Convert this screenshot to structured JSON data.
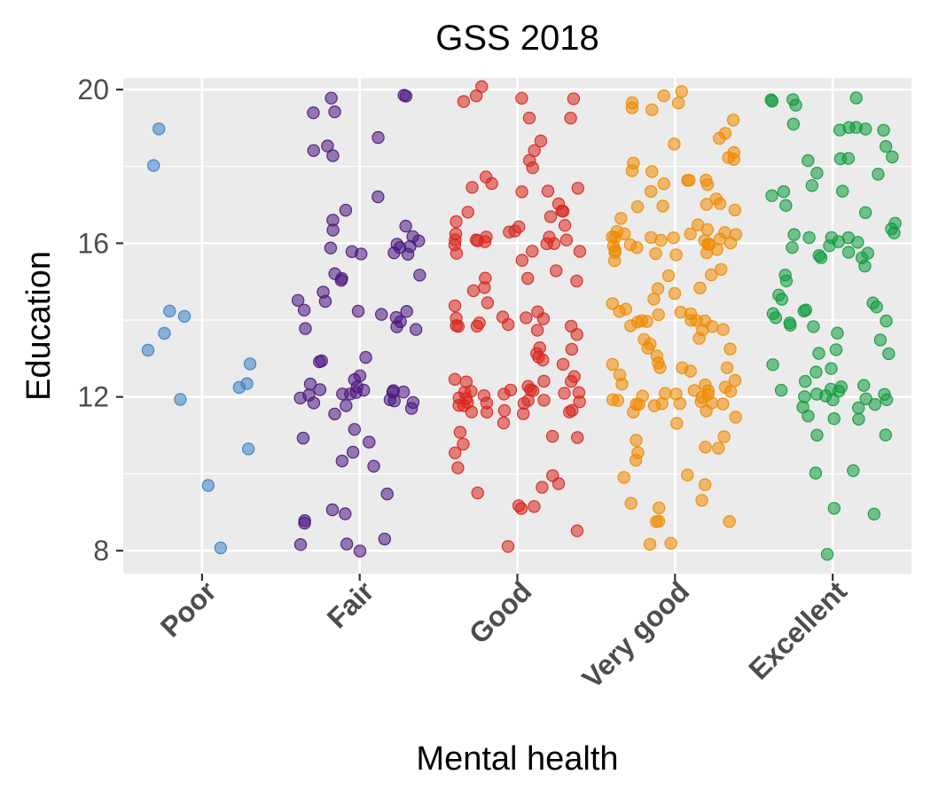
{
  "chart_data": {
    "type": "scatter",
    "title": "GSS 2018",
    "xlabel": "Mental health",
    "ylabel": "Education",
    "categories": [
      "Poor",
      "Fair",
      "Good",
      "Very good",
      "Excellent"
    ],
    "yticks": [
      8,
      12,
      16,
      20
    ],
    "ylim": [
      7.4,
      20.3
    ],
    "grid": true,
    "legend": "none",
    "jitter": true,
    "point_opacity": 0.55,
    "colors": [
      "#3a7fc4",
      "#4b167f",
      "#d7261e",
      "#ee8b00",
      "#0f9a3d"
    ],
    "series": [
      {
        "category": "Poor",
        "y": [
          19,
          18,
          14.2,
          14.1,
          13.8,
          13.1,
          12.8,
          12.4,
          12.3,
          11.8,
          10.8,
          9.8,
          8.1
        ]
      },
      {
        "category": "Fair",
        "y": [
          20,
          20,
          19.9,
          19.3,
          19.3,
          18.8,
          18.4,
          18.4,
          18.2,
          17.1,
          16.9,
          16.5,
          16.4,
          16.3,
          16.2,
          16.1,
          16.0,
          16.0,
          15.9,
          15.8,
          15.8,
          15.8,
          15.7,
          15.6,
          15.2,
          15.1,
          15.0,
          14.9,
          14.9,
          14.6,
          14.4,
          14.3,
          14.2,
          14.1,
          14.0,
          14.0,
          13.9,
          13.8,
          13.7,
          13.6,
          13.2,
          13.0,
          12.9,
          12.7,
          12.5,
          12.4,
          12.3,
          12.3,
          12.2,
          12.2,
          12.2,
          12.1,
          12.1,
          12.1,
          12.0,
          12.0,
          12.0,
          11.9,
          11.9,
          11.9,
          11.8,
          11.8,
          11.7,
          11.7,
          11.1,
          11.0,
          11.0,
          10.6,
          10.3,
          10.1,
          9.3,
          9.2,
          9.0,
          8.9,
          8.7,
          8.3,
          8.3,
          8.2,
          8.1
        ]
      },
      {
        "category": "Good",
        "y": [
          20,
          20,
          19.9,
          19.8,
          19.8,
          19.4,
          19.2,
          18.7,
          18.4,
          18.3,
          18.0,
          17.8,
          17.7,
          17.6,
          17.5,
          17.3,
          17.2,
          17.1,
          16.9,
          16.8,
          16.7,
          16.6,
          16.5,
          16.4,
          16.3,
          16.3,
          16.2,
          16.2,
          16.1,
          16.1,
          16.1,
          16.0,
          16.0,
          16.0,
          16.0,
          15.9,
          15.9,
          15.9,
          15.8,
          15.8,
          15.7,
          15.6,
          15.3,
          15.1,
          15.0,
          14.9,
          14.8,
          14.7,
          14.5,
          14.3,
          14.2,
          14.2,
          14.1,
          14.1,
          14.0,
          14.0,
          14.0,
          13.9,
          13.9,
          13.8,
          13.8,
          13.7,
          13.6,
          13.4,
          13.2,
          13.1,
          13.0,
          12.9,
          12.8,
          12.7,
          12.6,
          12.5,
          12.4,
          12.3,
          12.3,
          12.3,
          12.2,
          12.2,
          12.2,
          12.1,
          12.1,
          12.1,
          12.1,
          12.0,
          12.0,
          12.0,
          12.0,
          12.0,
          11.9,
          11.9,
          11.9,
          11.9,
          11.8,
          11.8,
          11.8,
          11.7,
          11.7,
          11.6,
          11.5,
          11.4,
          11.2,
          11.0,
          10.9,
          10.8,
          10.6,
          10.4,
          10.2,
          10.0,
          9.9,
          9.8,
          9.6,
          9.3,
          9.2,
          9.1,
          8.6,
          8.1
        ]
      },
      {
        "category": "Very good",
        "y": [
          19.9,
          19.8,
          19.8,
          19.7,
          19.6,
          19.4,
          19.2,
          19.0,
          18.8,
          18.6,
          18.4,
          18.3,
          18.2,
          18.1,
          18.0,
          17.9,
          17.8,
          17.7,
          17.6,
          17.5,
          17.4,
          17.3,
          17.2,
          17.1,
          17.0,
          16.9,
          16.8,
          16.7,
          16.6,
          16.5,
          16.4,
          16.3,
          16.3,
          16.3,
          16.2,
          16.2,
          16.2,
          16.1,
          16.1,
          16.1,
          16.1,
          16.0,
          16.0,
          16.0,
          16.0,
          16.0,
          15.9,
          15.9,
          15.9,
          15.9,
          15.8,
          15.8,
          15.8,
          15.7,
          15.7,
          15.6,
          15.4,
          15.2,
          15.1,
          15.0,
          14.9,
          14.7,
          14.5,
          14.4,
          14.3,
          14.2,
          14.2,
          14.1,
          14.1,
          14.1,
          14.0,
          14.0,
          14.0,
          14.0,
          13.9,
          13.9,
          13.9,
          13.8,
          13.8,
          13.7,
          13.6,
          13.5,
          13.3,
          13.2,
          13.1,
          13.0,
          12.9,
          12.8,
          12.7,
          12.6,
          12.5,
          12.4,
          12.3,
          12.3,
          12.3,
          12.2,
          12.2,
          12.2,
          12.1,
          12.1,
          12.1,
          12.1,
          12.0,
          12.0,
          12.0,
          12.0,
          12.0,
          11.9,
          11.9,
          11.9,
          11.9,
          11.8,
          11.8,
          11.8,
          11.7,
          11.7,
          11.6,
          11.4,
          11.1,
          11.0,
          10.8,
          10.6,
          10.4,
          10.2,
          10.0,
          9.9,
          9.7,
          9.4,
          9.2,
          9.1,
          8.9,
          8.8,
          8.7,
          8.2,
          8.1
        ]
      },
      {
        "category": "Excellent",
        "y": [
          19.9,
          19.8,
          19.8,
          19.7,
          19.7,
          19.1,
          19.1,
          19.0,
          19.0,
          18.9,
          18.8,
          18.4,
          18.3,
          18.2,
          18.1,
          18.0,
          17.9,
          17.8,
          17.6,
          17.4,
          17.3,
          17.1,
          16.9,
          16.8,
          16.6,
          16.4,
          16.3,
          16.2,
          16.2,
          16.1,
          16.1,
          16.0,
          16.0,
          16.0,
          15.9,
          15.9,
          15.8,
          15.8,
          15.7,
          15.6,
          15.3,
          15.1,
          14.9,
          14.8,
          14.6,
          14.5,
          14.3,
          14.3,
          14.2,
          14.2,
          14.1,
          14.0,
          14.0,
          13.9,
          13.8,
          13.6,
          13.4,
          13.2,
          13.1,
          13.0,
          12.9,
          12.8,
          12.6,
          12.4,
          12.3,
          12.3,
          12.2,
          12.2,
          12.1,
          12.1,
          12.0,
          12.0,
          12.0,
          11.9,
          11.9,
          11.9,
          11.8,
          11.8,
          11.7,
          11.6,
          11.5,
          11.4,
          11.1,
          11.0,
          10.1,
          10.0,
          9.1,
          9.0,
          8.0
        ]
      }
    ]
  }
}
